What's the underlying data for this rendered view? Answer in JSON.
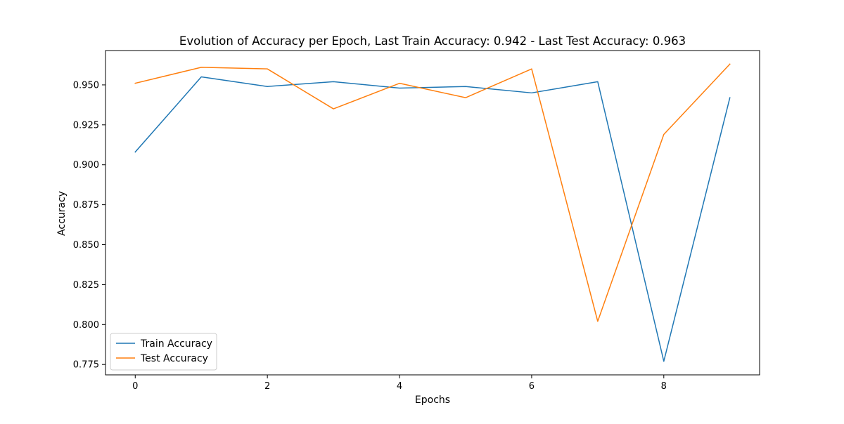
{
  "chart_data": {
    "type": "line",
    "title": "Evolution of Accuracy per Epoch,  Last Train Accuracy: 0.942 - Last Test Accuracy: 0.963",
    "xlabel": "Epochs",
    "ylabel": "Accuracy",
    "xlim": [
      -0.45,
      9.45
    ],
    "ylim": [
      0.7685,
      0.9715
    ],
    "x_ticks": [
      0,
      2,
      4,
      6,
      8
    ],
    "y_ticks": [
      0.775,
      0.8,
      0.825,
      0.85,
      0.875,
      0.9,
      0.925,
      0.95
    ],
    "x_tick_labels": [
      "0",
      "2",
      "4",
      "6",
      "8"
    ],
    "y_tick_labels": [
      "0.775",
      "0.800",
      "0.825",
      "0.850",
      "0.875",
      "0.900",
      "0.925",
      "0.950"
    ],
    "grid": false,
    "legend_position": "lower-left",
    "x": [
      0,
      1,
      2,
      3,
      4,
      5,
      6,
      7,
      8,
      9
    ],
    "series": [
      {
        "name": "Train Accuracy",
        "color": "#1f77b4",
        "values": [
          0.908,
          0.955,
          0.949,
          0.952,
          0.948,
          0.949,
          0.945,
          0.952,
          0.777,
          0.942
        ]
      },
      {
        "name": "Test Accuracy",
        "color": "#ff7f0e",
        "values": [
          0.951,
          0.961,
          0.96,
          0.935,
          0.951,
          0.942,
          0.96,
          0.802,
          0.919,
          0.963
        ]
      }
    ]
  }
}
